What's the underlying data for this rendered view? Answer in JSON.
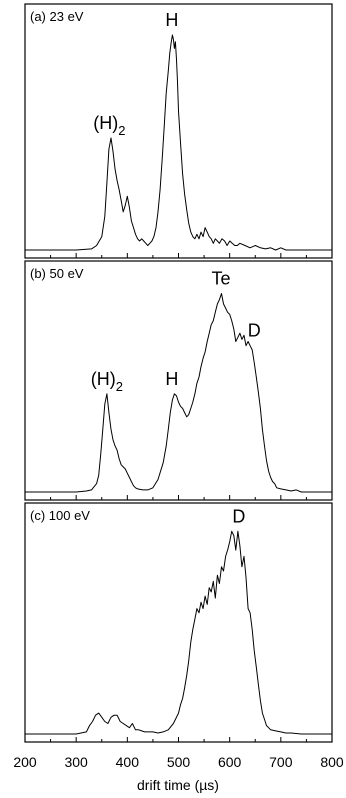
{
  "chart_data": {
    "type": "line",
    "xlabel": "drift time (µs)",
    "xlim": [
      200,
      800
    ],
    "x_ticks": [
      "200",
      "300",
      "400",
      "500",
      "600",
      "700",
      "800"
    ],
    "panels": [
      {
        "label": "(a) 23 eV",
        "annotations": [
          {
            "text": "(H)",
            "sub": "2",
            "x": 365
          },
          {
            "text": "H",
            "x": 487
          }
        ],
        "series": [
          {
            "x": [
              200,
              300,
              330,
              340,
              350,
              356,
              360,
              364,
              368,
              372,
              376,
              380,
              384,
              388,
              392,
              396,
              400,
              404,
              408,
              412,
              416,
              420,
              424,
              428,
              432,
              436,
              440,
              444,
              448,
              452,
              456,
              460,
              464,
              468,
              472,
              476,
              480,
              483,
              486,
              488,
              490,
              492,
              494,
              496,
              498,
              500,
              504,
              508,
              512,
              516,
              520,
              524,
              528,
              532,
              536,
              540,
              544,
              548,
              552,
              556,
              560,
              564,
              568,
              572,
              576,
              580,
              585,
              590,
              595,
              600,
              605,
              610,
              615,
              620,
              630,
              640,
              650,
              660,
              670,
              680,
              690,
              700,
              710,
              720,
              730,
              740,
              750,
              760,
              780,
              800
            ],
            "y": [
              0,
              0,
              0.005,
              0.02,
              0.06,
              0.15,
              0.3,
              0.45,
              0.5,
              0.44,
              0.36,
              0.31,
              0.27,
              0.22,
              0.17,
              0.2,
              0.24,
              0.19,
              0.13,
              0.1,
              0.07,
              0.05,
              0.04,
              0.05,
              0.04,
              0.03,
              0.02,
              0.03,
              0.04,
              0.06,
              0.1,
              0.17,
              0.27,
              0.4,
              0.55,
              0.7,
              0.8,
              0.88,
              0.93,
              0.96,
              0.94,
              0.9,
              0.93,
              0.85,
              0.75,
              0.62,
              0.48,
              0.34,
              0.25,
              0.18,
              0.12,
              0.08,
              0.06,
              0.05,
              0.07,
              0.05,
              0.08,
              0.06,
              0.1,
              0.08,
              0.06,
              0.05,
              0.03,
              0.05,
              0.04,
              0.03,
              0.05,
              0.04,
              0.02,
              0.04,
              0.03,
              0.02,
              0.02,
              0.03,
              0.02,
              0.01,
              0.02,
              0.01,
              0.005,
              0.01,
              0,
              0.01,
              0,
              0,
              0,
              0,
              0,
              0,
              0,
              0
            ]
          }
        ]
      },
      {
        "label": "(b) 50 eV",
        "annotations": [
          {
            "text": "(H)",
            "sub": "2",
            "x": 360
          },
          {
            "text": "H",
            "x": 487
          },
          {
            "text": "Te",
            "x": 583
          },
          {
            "text": "D",
            "x": 648
          }
        ],
        "series": [
          {
            "x": [
              200,
              300,
              320,
              330,
              340,
              344,
              348,
              352,
              356,
              360,
              364,
              368,
              372,
              376,
              380,
              384,
              388,
              392,
              396,
              400,
              404,
              408,
              412,
              416,
              420,
              430,
              440,
              450,
              460,
              470,
              476,
              480,
              484,
              488,
              492,
              496,
              500,
              504,
              508,
              512,
              516,
              520,
              524,
              528,
              532,
              536,
              540,
              544,
              548,
              552,
              556,
              560,
              564,
              568,
              572,
              576,
              580,
              584,
              588,
              592,
              596,
              600,
              604,
              608,
              612,
              616,
              620,
              624,
              628,
              632,
              636,
              640,
              644,
              648,
              652,
              656,
              660,
              664,
              668,
              672,
              676,
              680,
              684,
              688,
              692,
              700,
              710,
              720,
              730,
              740,
              760,
              780,
              800
            ],
            "y": [
              0,
              0,
              0.005,
              0.01,
              0.04,
              0.08,
              0.18,
              0.3,
              0.42,
              0.47,
              0.38,
              0.3,
              0.25,
              0.22,
              0.2,
              0.16,
              0.13,
              0.12,
              0.11,
              0.09,
              0.07,
              0.05,
              0.03,
              0.02,
              0.015,
              0.01,
              0.01,
              0.02,
              0.06,
              0.14,
              0.22,
              0.3,
              0.38,
              0.44,
              0.47,
              0.46,
              0.43,
              0.41,
              0.4,
              0.38,
              0.36,
              0.37,
              0.4,
              0.43,
              0.47,
              0.52,
              0.55,
              0.6,
              0.64,
              0.67,
              0.72,
              0.76,
              0.8,
              0.82,
              0.86,
              0.9,
              0.92,
              0.95,
              0.9,
              0.88,
              0.86,
              0.85,
              0.82,
              0.78,
              0.72,
              0.74,
              0.76,
              0.73,
              0.75,
              0.7,
              0.72,
              0.7,
              0.68,
              0.62,
              0.55,
              0.48,
              0.4,
              0.3,
              0.22,
              0.15,
              0.1,
              0.07,
              0.05,
              0.04,
              0.02,
              0.015,
              0.01,
              0.005,
              0.01,
              0,
              0,
              0,
              0
            ]
          }
        ]
      },
      {
        "label": "(c) 100 eV",
        "annotations": [
          {
            "text": "D",
            "x": 618
          }
        ],
        "series": [
          {
            "x": [
              200,
              300,
              320,
              326,
              332,
              338,
              344,
              350,
              356,
              362,
              368,
              374,
              380,
              386,
              392,
              398,
              404,
              410,
              416,
              422,
              428,
              434,
              440,
              450,
              460,
              470,
              480,
              490,
              500,
              504,
              508,
              512,
              516,
              520,
              524,
              528,
              532,
              536,
              540,
              544,
              548,
              552,
              556,
              560,
              564,
              568,
              572,
              576,
              580,
              584,
              588,
              592,
              596,
              600,
              604,
              608,
              612,
              616,
              620,
              624,
              628,
              632,
              636,
              640,
              644,
              648,
              652,
              656,
              660,
              664,
              668,
              672,
              676,
              680,
              690,
              700,
              710,
              720,
              740,
              760,
              780,
              800
            ],
            "y": [
              0,
              0,
              0.01,
              0.04,
              0.06,
              0.09,
              0.1,
              0.08,
              0.06,
              0.05,
              0.08,
              0.09,
              0.09,
              0.06,
              0.05,
              0.04,
              0.03,
              0.05,
              0.02,
              0.02,
              0.015,
              0.01,
              0.01,
              0.01,
              0.005,
              0.01,
              0.02,
              0.05,
              0.1,
              0.14,
              0.17,
              0.22,
              0.28,
              0.35,
              0.44,
              0.5,
              0.55,
              0.6,
              0.58,
              0.63,
              0.6,
              0.66,
              0.62,
              0.7,
              0.68,
              0.73,
              0.65,
              0.76,
              0.72,
              0.8,
              0.78,
              0.85,
              0.88,
              0.92,
              0.97,
              0.95,
              0.88,
              0.97,
              0.9,
              0.8,
              0.85,
              0.75,
              0.6,
              0.58,
              0.5,
              0.4,
              0.32,
              0.24,
              0.16,
              0.1,
              0.07,
              0.04,
              0.03,
              0.02,
              0.015,
              0.01,
              0.005,
              0.005,
              0,
              0,
              0,
              0
            ]
          }
        ]
      }
    ]
  }
}
